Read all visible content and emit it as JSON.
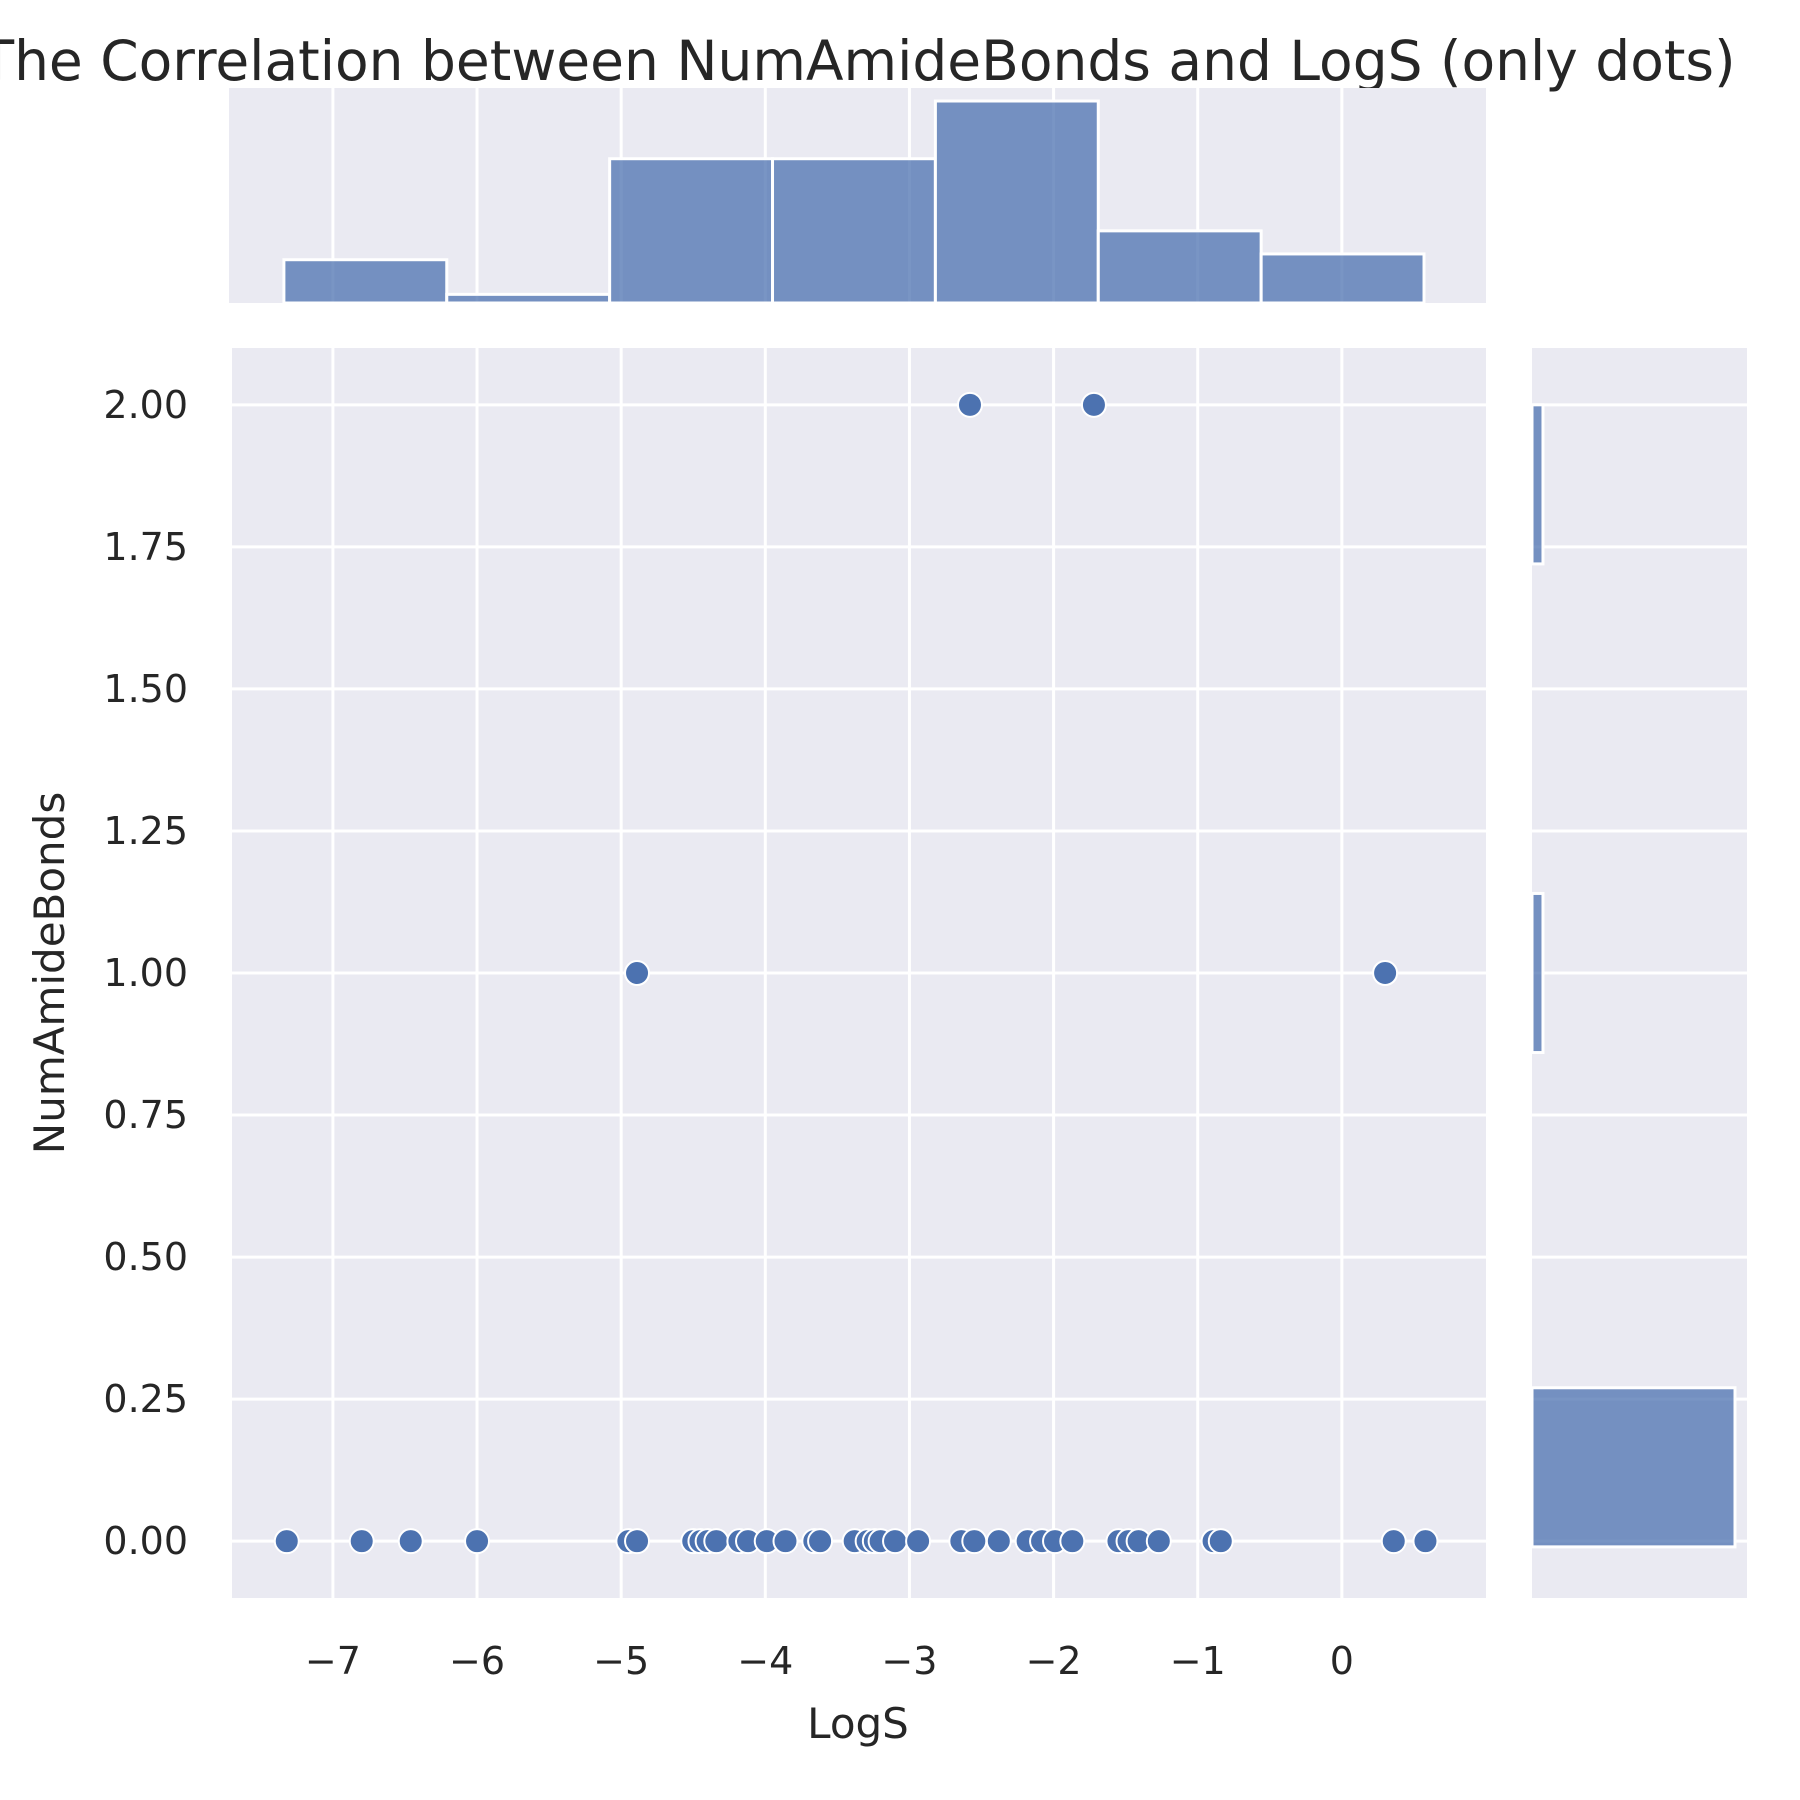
{
  "chart_data": {
    "type": "scatter",
    "title": "The Correlation between NumAmideBonds and LogS (only dots)",
    "xlabel": "LogS",
    "ylabel": "NumAmideBonds",
    "xlim": [
      -7.7,
      1.0
    ],
    "ylim": [
      -0.1,
      2.1
    ],
    "grid": true,
    "x_ticks": [
      -7,
      -6,
      -5,
      -4,
      -3,
      -2,
      -1,
      0
    ],
    "x_tick_labels": [
      "−7",
      "−6",
      "−5",
      "−4",
      "−3",
      "−2",
      "−1",
      "0"
    ],
    "y_ticks": [
      0,
      0.25,
      0.5,
      0.75,
      1.0,
      1.25,
      1.5,
      1.75,
      2.0
    ],
    "y_tick_labels": [
      "0.00",
      "0.25",
      "0.50",
      "0.75",
      "1.00",
      "1.25",
      "1.50",
      "1.75",
      "2.00"
    ],
    "color": "#4c72b0",
    "points": [
      {
        "x": -7.32,
        "y": 0
      },
      {
        "x": -6.8,
        "y": 0
      },
      {
        "x": -6.46,
        "y": 0
      },
      {
        "x": -6.0,
        "y": 0
      },
      {
        "x": -4.95,
        "y": 0
      },
      {
        "x": -4.89,
        "y": 0
      },
      {
        "x": -4.5,
        "y": 0
      },
      {
        "x": -4.45,
        "y": 0
      },
      {
        "x": -4.4,
        "y": 0
      },
      {
        "x": -4.34,
        "y": 0
      },
      {
        "x": -4.18,
        "y": 0
      },
      {
        "x": -4.12,
        "y": 0
      },
      {
        "x": -3.99,
        "y": 0
      },
      {
        "x": -3.86,
        "y": 0
      },
      {
        "x": -3.66,
        "y": 0
      },
      {
        "x": -3.62,
        "y": 0
      },
      {
        "x": -3.38,
        "y": 0
      },
      {
        "x": -3.29,
        "y": 0
      },
      {
        "x": -3.24,
        "y": 0
      },
      {
        "x": -3.2,
        "y": 0
      },
      {
        "x": -3.1,
        "y": 0
      },
      {
        "x": -2.94,
        "y": 0
      },
      {
        "x": -2.64,
        "y": 0
      },
      {
        "x": -2.55,
        "y": 0
      },
      {
        "x": -2.38,
        "y": 0
      },
      {
        "x": -2.18,
        "y": 0
      },
      {
        "x": -2.08,
        "y": 0
      },
      {
        "x": -1.99,
        "y": 0
      },
      {
        "x": -1.87,
        "y": 0
      },
      {
        "x": -1.55,
        "y": 0
      },
      {
        "x": -1.48,
        "y": 0
      },
      {
        "x": -1.41,
        "y": 0
      },
      {
        "x": -1.27,
        "y": 0
      },
      {
        "x": -0.89,
        "y": 0
      },
      {
        "x": -0.84,
        "y": 0
      },
      {
        "x": 0.36,
        "y": 0
      },
      {
        "x": 0.58,
        "y": 0
      },
      {
        "x": -4.89,
        "y": 1
      },
      {
        "x": 0.3,
        "y": 1
      },
      {
        "x": -2.58,
        "y": 2
      },
      {
        "x": -1.72,
        "y": 2
      }
    ],
    "x_hist": {
      "bin_edges": [
        -7.34,
        -6.21,
        -5.08,
        -3.95,
        -2.82,
        -1.69,
        -0.56,
        0.57
      ],
      "counts": [
        3,
        0.6,
        10,
        10,
        14,
        5,
        3.4
      ]
    },
    "y_hist": {
      "bins": [
        {
          "lo": -0.01,
          "hi": 0.27,
          "count": 37
        },
        {
          "lo": 0.86,
          "hi": 1.14,
          "count": 2
        },
        {
          "lo": 1.72,
          "hi": 2.0,
          "count": 2
        }
      ]
    }
  }
}
